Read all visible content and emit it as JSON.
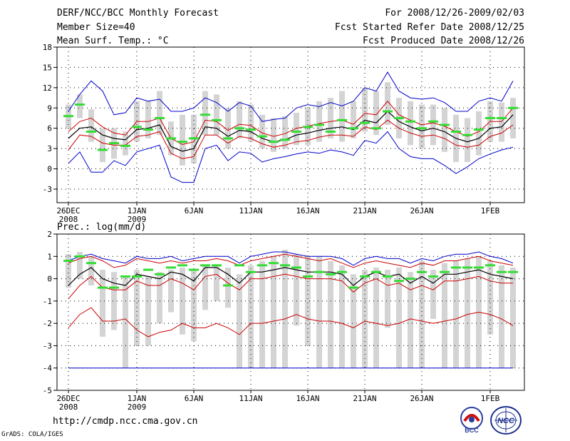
{
  "header": {
    "title": "DERF/NCC/BCC Monthly Forecast",
    "member_size": "Member Size=40",
    "panel1_var": "Mean Surf. Temp.: °C",
    "period": "For 2008/12/26-2009/02/03",
    "start_date": "Fcst Started Refer Date 2008/12/25",
    "produced_date": "Fcst Produced Date 2008/12/26"
  },
  "footer": {
    "url": "http://cmdp.ncc.cma.gov.cn",
    "credit": "GrADS: COLA/IGES",
    "logo_bcc": "BCC",
    "logo_ncc": "NCC"
  },
  "colors": {
    "mean": "#000000",
    "spread": "#cc0000",
    "range": "#0000cc",
    "box": "#d4d4d4",
    "marker": "#33dd33"
  },
  "chart_data": [
    {
      "type": "line",
      "title": "Mean Surf. Temp.: °C",
      "days": 40,
      "xticks": [
        {
          "day": 0,
          "label": "26DEC",
          "sub": "2008"
        },
        {
          "day": 6,
          "label": "1JAN",
          "sub": "2009"
        },
        {
          "day": 11,
          "label": "6JAN",
          "sub": ""
        },
        {
          "day": 16,
          "label": "11JAN",
          "sub": ""
        },
        {
          "day": 21,
          "label": "16JAN",
          "sub": ""
        },
        {
          "day": 26,
          "label": "21JAN",
          "sub": ""
        },
        {
          "day": 31,
          "label": "26JAN",
          "sub": ""
        },
        {
          "day": 37,
          "label": "1FEB",
          "sub": ""
        }
      ],
      "yticks": [
        -3,
        0,
        3,
        6,
        9,
        12,
        15,
        18
      ],
      "ylim": [
        -5,
        18
      ],
      "series": [
        {
          "name": "mean",
          "values": [
            4.5,
            6.0,
            6.2,
            5.0,
            4.5,
            4.3,
            5.8,
            6.0,
            6.5,
            3.3,
            2.6,
            3.0,
            6.2,
            6.0,
            4.8,
            5.7,
            5.5,
            4.5,
            4.0,
            4.3,
            5.0,
            5.3,
            5.7,
            6.0,
            6.2,
            5.8,
            7.2,
            6.8,
            8.5,
            7.0,
            6.2,
            5.6,
            6.0,
            5.5,
            4.5,
            4.0,
            4.5,
            6.0,
            6.2,
            8.0
          ]
        },
        {
          "name": "upper",
          "values": [
            5.5,
            7.0,
            7.5,
            6.2,
            5.3,
            5.0,
            7.0,
            7.0,
            7.5,
            4.5,
            3.6,
            4.0,
            7.2,
            7.0,
            5.7,
            6.6,
            6.4,
            5.3,
            4.8,
            5.2,
            6.0,
            6.3,
            6.7,
            7.0,
            7.2,
            6.6,
            8.2,
            8.0,
            10.0,
            8.0,
            7.2,
            6.5,
            6.8,
            6.3,
            5.5,
            4.8,
            5.5,
            7.0,
            7.0,
            9.0
          ]
        },
        {
          "name": "lower",
          "values": [
            2.8,
            5.0,
            4.8,
            3.8,
            3.5,
            3.5,
            4.8,
            5.0,
            5.5,
            2.3,
            1.5,
            1.8,
            5.0,
            5.0,
            3.8,
            4.8,
            4.5,
            3.7,
            3.2,
            3.5,
            4.0,
            4.2,
            4.7,
            5.0,
            5.0,
            4.8,
            6.2,
            5.8,
            7.2,
            6.0,
            5.3,
            4.8,
            5.0,
            4.5,
            3.5,
            3.2,
            3.5,
            4.8,
            5.3,
            6.5
          ]
        },
        {
          "name": "max",
          "values": [
            8.5,
            11.0,
            13.0,
            11.5,
            8.0,
            8.3,
            10.5,
            10.0,
            10.3,
            8.5,
            8.5,
            9.0,
            10.5,
            9.8,
            8.5,
            9.8,
            9.3,
            7.0,
            7.3,
            7.5,
            9.0,
            9.5,
            9.2,
            9.8,
            9.3,
            10.0,
            12.0,
            11.5,
            14.3,
            11.5,
            10.5,
            10.3,
            10.5,
            9.8,
            8.5,
            8.5,
            10.0,
            10.5,
            10.0,
            13.0
          ]
        },
        {
          "name": "min",
          "values": [
            0.8,
            2.5,
            -0.5,
            -0.5,
            1.2,
            0.5,
            2.5,
            3.0,
            3.5,
            -1.2,
            -2.0,
            -2.0,
            3.0,
            3.5,
            1.2,
            2.5,
            2.3,
            1.0,
            1.5,
            1.8,
            2.2,
            2.5,
            2.3,
            2.8,
            2.5,
            2.0,
            4.2,
            3.8,
            5.5,
            3.0,
            1.8,
            1.5,
            1.5,
            0.5,
            -0.7,
            0.3,
            1.5,
            2.2,
            2.8,
            3.2
          ]
        }
      ],
      "boxes": [
        [
          6,
          9.5
        ],
        [
          7.5,
          11
        ],
        [
          4,
          8.8
        ],
        [
          1,
          6
        ],
        [
          1.5,
          6
        ],
        [
          2,
          5.5
        ],
        [
          4,
          10
        ],
        [
          4.5,
          10
        ],
        [
          5,
          11.5
        ],
        [
          2,
          7
        ],
        [
          0.5,
          8
        ],
        [
          0.8,
          8
        ],
        [
          5,
          11.5
        ],
        [
          5,
          11
        ],
        [
          3,
          9
        ],
        [
          4.5,
          10
        ],
        [
          4,
          9.5
        ],
        [
          3,
          8
        ],
        [
          2.5,
          7.5
        ],
        [
          3,
          7.8
        ],
        [
          3.5,
          8.3
        ],
        [
          3.5,
          9
        ],
        [
          4,
          10
        ],
        [
          4.5,
          10.5
        ],
        [
          4,
          11.5
        ],
        [
          4.5,
          10
        ],
        [
          5.5,
          12
        ],
        [
          5,
          11.5
        ],
        [
          6.5,
          12.8
        ],
        [
          4.5,
          10.5
        ],
        [
          3.5,
          10
        ],
        [
          3,
          9.5
        ],
        [
          3.5,
          9.5
        ],
        [
          2.5,
          9
        ],
        [
          1,
          8
        ],
        [
          1,
          7.5
        ],
        [
          2,
          8.5
        ],
        [
          4,
          10
        ],
        [
          4,
          9.8
        ],
        [
          4.5,
          10.5
        ]
      ],
      "markers": [
        7.8,
        9.5,
        5.5,
        2.8,
        3.8,
        3.4,
        6.2,
        5.8,
        7.5,
        4.5,
        4.0,
        4.5,
        8.0,
        7.2,
        4.5,
        6.0,
        5.8,
        4.8,
        4.0,
        4.3,
        5.5,
        6.2,
        6.5,
        5.5,
        7.2,
        6.0,
        6.8,
        6.0,
        8.5,
        7.5,
        7.0,
        6.0,
        7.0,
        6.5,
        5.5,
        5.0,
        5.8,
        7.5,
        7.5,
        9.0
      ]
    },
    {
      "type": "line",
      "title": "Prec.: log(mm/d)",
      "days": 40,
      "xticks": [
        {
          "day": 0,
          "label": "26DEC",
          "sub": "2008"
        },
        {
          "day": 6,
          "label": "1JAN",
          "sub": "2009"
        },
        {
          "day": 11,
          "label": "6JAN",
          "sub": ""
        },
        {
          "day": 16,
          "label": "11JAN",
          "sub": ""
        },
        {
          "day": 21,
          "label": "16JAN",
          "sub": ""
        },
        {
          "day": 26,
          "label": "21JAN",
          "sub": ""
        },
        {
          "day": 31,
          "label": "26JAN",
          "sub": ""
        },
        {
          "day": 37,
          "label": "1FEB",
          "sub": ""
        }
      ],
      "yticks": [
        -5,
        -4,
        -3,
        -2,
        -1,
        0,
        1,
        2
      ],
      "ylim": [
        -5,
        2
      ],
      "series": [
        {
          "name": "mean",
          "values": [
            -0.3,
            0.2,
            0.5,
            0.0,
            -0.2,
            -0.3,
            0.2,
            0.1,
            0.0,
            0.3,
            0.2,
            -0.1,
            0.5,
            0.5,
            0.2,
            -0.2,
            0.3,
            0.3,
            0.4,
            0.5,
            0.4,
            0.3,
            0.3,
            0.3,
            0.2,
            -0.3,
            0.1,
            0.3,
            0.1,
            0.2,
            -0.2,
            0.1,
            -0.2,
            0.2,
            0.2,
            0.3,
            0.4,
            0.2,
            0.1,
            0.0
          ]
        },
        {
          "name": "upper",
          "values": [
            0.7,
            0.9,
            1.0,
            0.8,
            0.5,
            0.6,
            0.9,
            0.8,
            0.7,
            0.8,
            0.7,
            0.8,
            0.8,
            0.9,
            0.8,
            0.6,
            0.8,
            0.9,
            1.0,
            1.1,
            1.0,
            0.9,
            0.8,
            0.9,
            0.7,
            0.5,
            0.7,
            0.8,
            0.7,
            0.6,
            0.5,
            0.7,
            0.6,
            0.8,
            0.8,
            0.9,
            1.0,
            0.8,
            0.7,
            0.6
          ]
        },
        {
          "name": "lower",
          "values": [
            -0.9,
            -0.3,
            0.1,
            -0.4,
            -0.5,
            -0.5,
            -0.1,
            -0.3,
            -0.3,
            0.0,
            -0.2,
            -0.5,
            0.1,
            0.2,
            -0.2,
            -0.5,
            0.0,
            0.0,
            0.1,
            0.2,
            0.1,
            0.0,
            0.0,
            0.0,
            -0.1,
            -0.6,
            -0.2,
            0.0,
            -0.3,
            -0.2,
            -0.5,
            -0.3,
            -0.5,
            -0.1,
            -0.1,
            0.0,
            0.1,
            -0.1,
            -0.2,
            -0.2
          ]
        },
        {
          "name": "max",
          "values": [
            0.8,
            1.0,
            1.1,
            0.9,
            0.8,
            0.7,
            1.0,
            0.9,
            0.9,
            1.0,
            0.8,
            0.9,
            1.0,
            1.0,
            1.0,
            0.7,
            1.0,
            1.1,
            1.2,
            1.2,
            1.1,
            1.0,
            1.0,
            1.0,
            0.9,
            0.6,
            0.9,
            1.0,
            0.9,
            0.9,
            0.7,
            0.9,
            0.8,
            1.0,
            1.1,
            1.1,
            1.2,
            1.0,
            0.9,
            0.7
          ]
        },
        {
          "name": "min",
          "values": [
            -2.2,
            -1.6,
            -1.3,
            -1.9,
            -1.9,
            -1.8,
            -2.3,
            -2.6,
            -2.4,
            -2.3,
            -2.0,
            -2.2,
            -2.2,
            -2.0,
            -2.2,
            -2.5,
            -2.0,
            -2.0,
            -1.9,
            -1.8,
            -1.6,
            -1.8,
            -1.9,
            -1.9,
            -2.0,
            -2.2,
            -1.9,
            -2.0,
            -2.1,
            -2.0,
            -1.8,
            -1.9,
            -2.0,
            -1.9,
            -1.8,
            -1.6,
            -1.5,
            -1.6,
            -1.8,
            -2.1
          ]
        },
        {
          "name": "floor",
          "values": [
            -4,
            -4,
            -4,
            -4,
            -4,
            -4,
            -4,
            -4,
            -4,
            -4,
            -4,
            -4,
            -4,
            -4,
            -4,
            -4,
            -4,
            -4,
            -4,
            -4,
            -4,
            -4,
            -4,
            -4,
            -4,
            -4,
            -4,
            -4,
            -4,
            -4,
            -4,
            -4,
            -4,
            -4,
            -4,
            -4,
            -4,
            -4,
            -4,
            -4
          ]
        }
      ],
      "boxes": [
        [
          -0.4,
          1.1
        ],
        [
          0,
          1.2
        ],
        [
          -0.3,
          1
        ],
        [
          -2.6,
          0.4
        ],
        [
          -2.3,
          0.3
        ],
        [
          -4,
          0.1
        ],
        [
          -3,
          0.4
        ],
        [
          -3,
          0.1
        ],
        [
          -2,
          0.3
        ],
        [
          -1.5,
          0.4
        ],
        [
          -2.5,
          0.5
        ],
        [
          -2.8,
          0.4
        ],
        [
          -1.4,
          0.6
        ],
        [
          -1,
          0.6
        ],
        [
          -1.3,
          0.5
        ],
        [
          -4,
          0.2
        ],
        [
          -4,
          0.6
        ],
        [
          -4,
          0.8
        ],
        [
          -4,
          1
        ],
        [
          -4,
          1.3
        ],
        [
          -2.1,
          1.1
        ],
        [
          -3,
          1
        ],
        [
          -4,
          1
        ],
        [
          -4,
          0.8
        ],
        [
          -4,
          0.6
        ],
        [
          -4,
          0.2
        ],
        [
          -4,
          0.4
        ],
        [
          -4,
          0.5
        ],
        [
          -2.2,
          0.4
        ],
        [
          -4,
          0.5
        ],
        [
          -4,
          0.3
        ],
        [
          -4,
          0.8
        ],
        [
          -1.8,
          0.4
        ],
        [
          -4,
          0.7
        ],
        [
          -4,
          0.8
        ],
        [
          -4,
          0.9
        ],
        [
          -4,
          1
        ],
        [
          -2.5,
          0.8
        ],
        [
          -4,
          0.6
        ],
        [
          -4,
          0.5
        ]
      ],
      "markers": [
        0.8,
        1.0,
        0.7,
        -0.4,
        -0.4,
        0.1,
        0.1,
        0.4,
        0.2,
        0.5,
        0.6,
        0.4,
        0.6,
        0.6,
        -0.3,
        0.6,
        0.3,
        0.6,
        0.7,
        0.6,
        0.5,
        0.1,
        0.3,
        0.2,
        0.3,
        -0.4,
        0.1,
        0.3,
        0.1,
        -0.1,
        0.0,
        0.3,
        0.1,
        0.3,
        0.5,
        0.5,
        0.5,
        0.6,
        0.3,
        0.3
      ]
    }
  ]
}
